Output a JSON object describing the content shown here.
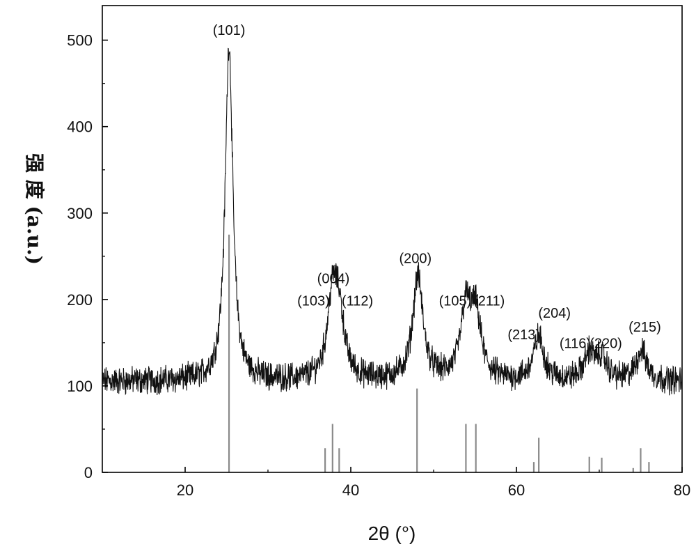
{
  "chart_data": {
    "type": "line",
    "title": "",
    "xlabel": "2θ (°)",
    "ylabel": "强 度 (a.u.)",
    "xlim": [
      10,
      80
    ],
    "ylim": [
      0,
      540
    ],
    "xticks": [
      20,
      40,
      60,
      80
    ],
    "yticks": [
      0,
      100,
      200,
      300,
      400,
      500
    ],
    "colors": {
      "line": "#111111",
      "reference": "#8a8a8a",
      "axis": "#000000"
    },
    "series": [
      {
        "kind": "xrd-pattern",
        "baseline": 105,
        "noise_amplitude": 13,
        "peaks": [
          {
            "x": 25.3,
            "y": 495
          },
          {
            "x": 37.8,
            "y": 195
          },
          {
            "x": 38.6,
            "y": 170
          },
          {
            "x": 48.1,
            "y": 225
          },
          {
            "x": 53.9,
            "y": 185
          },
          {
            "x": 55.1,
            "y": 175
          },
          {
            "x": 62.7,
            "y": 155
          },
          {
            "x": 68.8,
            "y": 135
          },
          {
            "x": 70.3,
            "y": 130
          },
          {
            "x": 75.1,
            "y": 140
          }
        ]
      }
    ],
    "reference_lines": [
      {
        "x": 25.3,
        "y": 275
      },
      {
        "x": 36.9,
        "y": 28
      },
      {
        "x": 37.8,
        "y": 56
      },
      {
        "x": 38.6,
        "y": 28
      },
      {
        "x": 48.0,
        "y": 97
      },
      {
        "x": 53.9,
        "y": 56
      },
      {
        "x": 55.1,
        "y": 56
      },
      {
        "x": 62.1,
        "y": 12
      },
      {
        "x": 62.7,
        "y": 40
      },
      {
        "x": 68.8,
        "y": 18
      },
      {
        "x": 70.3,
        "y": 17
      },
      {
        "x": 74.1,
        "y": 5
      },
      {
        "x": 75.0,
        "y": 28
      },
      {
        "x": 76.0,
        "y": 12
      }
    ],
    "annotations": [
      {
        "text": "(101)",
        "x": 25.3,
        "y": 506
      },
      {
        "text": "(004)",
        "x": 37.9,
        "y": 219
      },
      {
        "text": "(103)",
        "x": 35.5,
        "y": 193
      },
      {
        "text": "(112)",
        "x": 40.8,
        "y": 193
      },
      {
        "text": "(200)",
        "x": 47.8,
        "y": 242
      },
      {
        "text": "(105)",
        "x": 52.6,
        "y": 193
      },
      {
        "text": "(211)",
        "x": 56.7,
        "y": 193
      },
      {
        "text": "(213)",
        "x": 60.9,
        "y": 154
      },
      {
        "text": "(204)",
        "x": 64.6,
        "y": 179
      },
      {
        "text": "(116)",
        "x": 67.1,
        "y": 144
      },
      {
        "text": "(220)",
        "x": 70.8,
        "y": 144
      },
      {
        "text": "(215)",
        "x": 75.5,
        "y": 163
      }
    ],
    "grid": false,
    "legend": "none"
  }
}
